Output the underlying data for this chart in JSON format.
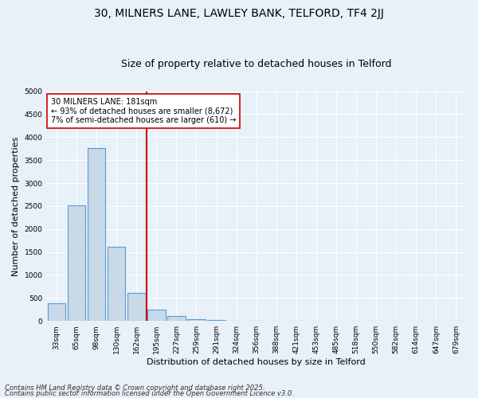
{
  "title1": "30, MILNERS LANE, LAWLEY BANK, TELFORD, TF4 2JJ",
  "title2": "Size of property relative to detached houses in Telford",
  "xlabel": "Distribution of detached houses by size in Telford",
  "ylabel": "Number of detached properties",
  "categories": [
    "33sqm",
    "65sqm",
    "98sqm",
    "130sqm",
    "162sqm",
    "195sqm",
    "227sqm",
    "259sqm",
    "291sqm",
    "324sqm",
    "356sqm",
    "388sqm",
    "421sqm",
    "453sqm",
    "485sqm",
    "518sqm",
    "550sqm",
    "582sqm",
    "614sqm",
    "647sqm",
    "679sqm"
  ],
  "values": [
    380,
    2520,
    3760,
    1620,
    610,
    240,
    110,
    45,
    20,
    5,
    0,
    0,
    0,
    0,
    0,
    0,
    0,
    0,
    0,
    0,
    0
  ],
  "bar_color": "#c9d9e8",
  "bar_edge_color": "#5b9bd5",
  "vline_x_index": 4.5,
  "vline_color": "#cc0000",
  "annotation_text": "30 MILNERS LANE: 181sqm\n← 93% of detached houses are smaller (8,672)\n7% of semi-detached houses are larger (610) →",
  "annotation_box_color": "#ffffff",
  "annotation_box_edge": "#cc0000",
  "ylim": [
    0,
    5000
  ],
  "yticks": [
    0,
    500,
    1000,
    1500,
    2000,
    2500,
    3000,
    3500,
    4000,
    4500,
    5000
  ],
  "bg_color": "#e8f0f8",
  "footer1": "Contains HM Land Registry data © Crown copyright and database right 2025.",
  "footer2": "Contains public sector information licensed under the Open Government Licence v3.0.",
  "title1_fontsize": 10,
  "title2_fontsize": 9,
  "xlabel_fontsize": 8,
  "ylabel_fontsize": 8,
  "tick_fontsize": 6.5,
  "annot_fontsize": 7,
  "footer_fontsize": 6
}
